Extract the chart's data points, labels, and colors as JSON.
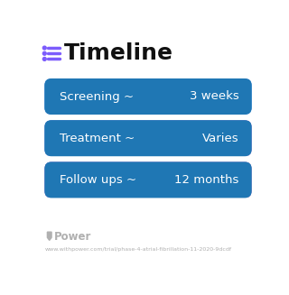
{
  "title": "Timeline",
  "title_fontsize": 18,
  "title_color": "#111111",
  "background_color": "#ffffff",
  "icon_color": "#7c5cfc",
  "rows": [
    {
      "label": "Screening ~",
      "value": "3 weeks",
      "color_left": "#4d8ef0",
      "color_right": "#5fa0f8"
    },
    {
      "label": "Treatment ~",
      "value": "Varies",
      "color_left": "#6a7fe0",
      "color_right": "#b07ad8"
    },
    {
      "label": "Follow ups ~",
      "value": "12 months",
      "color_left": "#9b6dd4",
      "color_right": "#c080cc"
    }
  ],
  "row_text_color": "#ffffff",
  "row_label_fontsize": 9.5,
  "row_value_fontsize": 9.5,
  "footer_text": "Power",
  "footer_url": "www.withpower.com/trial/phase-4-atrial-fibrillation-11-2020-9dcdf",
  "footer_color": "#b0b0b0",
  "footer_fontsize": 4.5,
  "footer_power_fontsize": 8.5
}
